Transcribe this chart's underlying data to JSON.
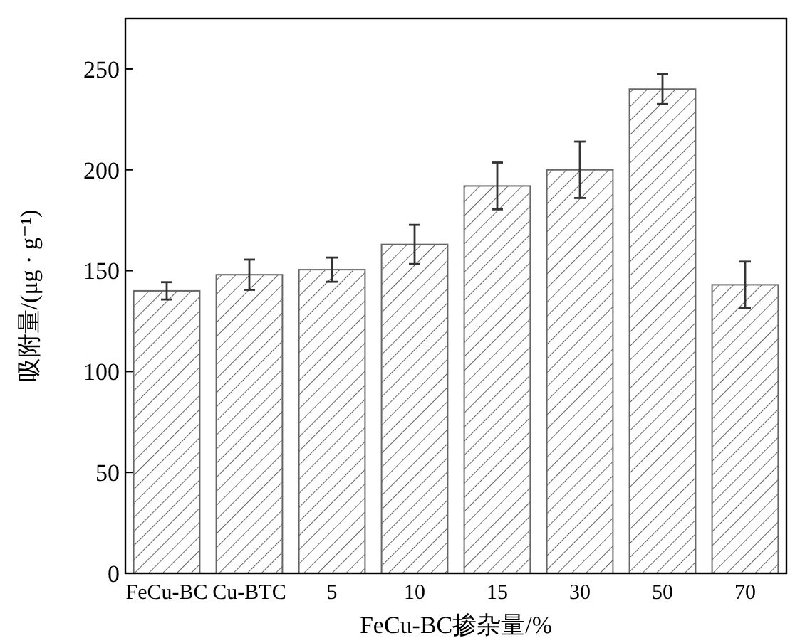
{
  "chart_data": {
    "type": "bar",
    "xlabel": "FeCu-BC掺杂量/%",
    "ylabel": "吸附量/(μg · g⁻¹)",
    "categories": [
      "FeCu-BC",
      "Cu-BTC",
      "5",
      "10",
      "15",
      "30",
      "50",
      "70"
    ],
    "values": [
      140,
      148,
      150.5,
      163,
      192,
      200,
      240,
      143
    ],
    "errors": [
      4.3,
      7.5,
      6,
      9.7,
      11.6,
      14,
      7.4,
      11.5
    ],
    "color": "#666666",
    "ylim": [
      0,
      275
    ],
    "yticks": [
      0,
      50,
      100,
      150,
      200,
      250
    ],
    "grid": false
  }
}
